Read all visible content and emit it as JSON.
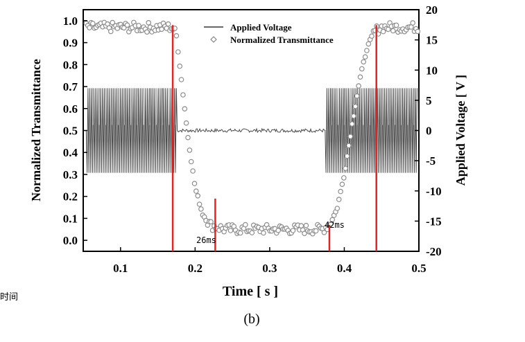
{
  "chart_data": {
    "type": "line",
    "xlabel": "Time [ s ]",
    "ylabel_left": "Normalized Transmittance",
    "ylabel_right": "Applied Voltage [ V ]",
    "caption": "(b)",
    "side_note": "时间",
    "x_range": [
      0.05,
      0.5
    ],
    "y_left_range": [
      -0.05,
      1.05
    ],
    "y_right_range": [
      -20,
      20
    ],
    "x_ticks": [
      0.1,
      0.2,
      0.3,
      0.4,
      0.5
    ],
    "x_tick_labels": [
      "0.1",
      "0.2",
      "0.3",
      "0.4",
      "0.5"
    ],
    "y_left_ticks": [
      0.0,
      0.1,
      0.2,
      0.3,
      0.4,
      0.5,
      0.6,
      0.7,
      0.8,
      0.9,
      1.0
    ],
    "y_left_tick_labels": [
      "0.0",
      "0.1",
      "0.2",
      "0.3",
      "0.4",
      "0.5",
      "0.6",
      "0.7",
      "0.8",
      "0.9",
      "1.0"
    ],
    "y_right_ticks": [
      -20,
      -15,
      -10,
      -5,
      0,
      5,
      10,
      15,
      20
    ],
    "y_right_tick_labels": [
      "-20",
      "-15",
      "-10",
      "-5",
      "0",
      "5",
      "10",
      "15",
      "20"
    ],
    "legend": {
      "placement": "top-center",
      "entries": [
        {
          "label": "Applied Voltage",
          "marker": "line"
        },
        {
          "label": "Normalized Transmittance",
          "marker": "diamond"
        }
      ]
    },
    "series": [
      {
        "name": "Applied Voltage",
        "axis": "right",
        "description_points": {
          "on_intervals": [
            [
              0.055,
              0.175
            ],
            [
              0.375,
              0.5
            ]
          ],
          "on_amplitude_v": 7,
          "off_level_v": 0,
          "off_noise_v": 0.3
        }
      },
      {
        "name": "Normalized Transmittance",
        "axis": "left",
        "x": [
          0.05,
          0.17,
          0.175,
          0.18,
          0.19,
          0.2,
          0.21,
          0.22,
          0.23,
          0.24,
          0.3,
          0.37,
          0.38,
          0.39,
          0.4,
          0.41,
          0.42,
          0.43,
          0.44,
          0.45,
          0.5
        ],
        "y": [
          0.97,
          0.97,
          0.93,
          0.78,
          0.48,
          0.24,
          0.12,
          0.07,
          0.06,
          0.05,
          0.05,
          0.05,
          0.07,
          0.14,
          0.3,
          0.52,
          0.72,
          0.87,
          0.95,
          0.97,
          0.97
        ]
      }
    ],
    "markers": [
      {
        "x": 0.17,
        "y0": -0.05,
        "y1": 0.98,
        "color": "#e82020"
      },
      {
        "x": 0.227,
        "y0": -0.05,
        "y1": 0.19,
        "color": "#e82020"
      },
      {
        "x": 0.38,
        "y0": -0.05,
        "y1": 0.07,
        "color": "#e82020"
      },
      {
        "x": 0.443,
        "y0": -0.05,
        "y1": 0.98,
        "color": "#e82020"
      }
    ],
    "annotations": [
      {
        "text": "26ms",
        "x": 0.215,
        "y": 0.0
      },
      {
        "text": "42ms",
        "x": 0.387,
        "y": 0.07
      }
    ],
    "grid": false
  }
}
